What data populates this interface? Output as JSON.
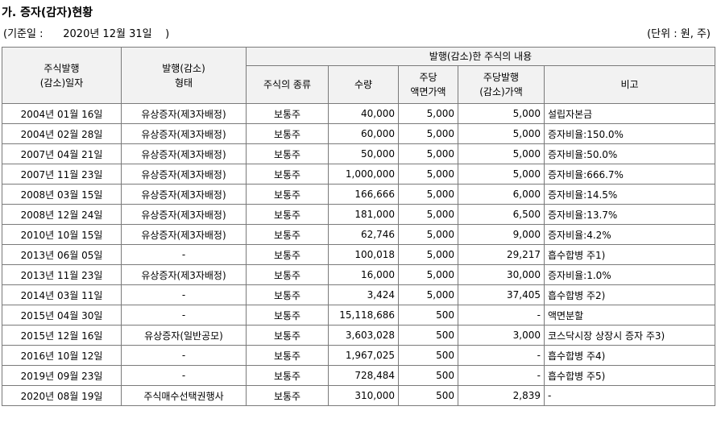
{
  "title": "가. 증자(감자)현황",
  "base_date": "(기준일 :      2020년 12월 31일    )",
  "unit": "(단위 : 원, 주)",
  "headers": {
    "issue_date_1": "주식발행",
    "issue_date_2": "(감소)일자",
    "issue_type_1": "발행(감소)",
    "issue_type_2": "형태",
    "contents": "발행(감소)한 주식의 내용",
    "kind": "주식의 종류",
    "quantity": "수량",
    "par_1": "주당",
    "par_2": "액면가액",
    "price_1": "주당발행",
    "price_2": "(감소)가액",
    "note": "비고"
  },
  "rows": [
    {
      "date": "2004년 01월 16일",
      "type": "유상증자(제3자배정)",
      "kind": "보통주",
      "qty": "40,000",
      "par": "5,000",
      "price": "5,000",
      "note": "설립자본금"
    },
    {
      "date": "2004년 02월 28일",
      "type": "유상증자(제3자배정)",
      "kind": "보통주",
      "qty": "60,000",
      "par": "5,000",
      "price": "5,000",
      "note": "증자비율:150.0%"
    },
    {
      "date": "2007년 04월 21일",
      "type": "유상증자(제3자배정)",
      "kind": "보통주",
      "qty": "50,000",
      "par": "5,000",
      "price": "5,000",
      "note": "증자비율:50.0%"
    },
    {
      "date": "2007년 11월 23일",
      "type": "유상증자(제3자배정)",
      "kind": "보통주",
      "qty": "1,000,000",
      "par": "5,000",
      "price": "5,000",
      "note": "증자비율:666.7%"
    },
    {
      "date": "2008년 03월 15일",
      "type": "유상증자(제3자배정)",
      "kind": "보통주",
      "qty": "166,666",
      "par": "5,000",
      "price": "6,000",
      "note": "증자비율:14.5%"
    },
    {
      "date": "2008년 12월 24일",
      "type": "유상증자(제3자배정)",
      "kind": "보통주",
      "qty": "181,000",
      "par": "5,000",
      "price": "6,500",
      "note": "증자비율:13.7%"
    },
    {
      "date": "2010년 10월 15일",
      "type": "유상증자(제3자배정)",
      "kind": "보통주",
      "qty": "62,746",
      "par": "5,000",
      "price": "9,000",
      "note": "증자비율:4.2%"
    },
    {
      "date": "2013년 06월 05일",
      "type": "-",
      "kind": "보통주",
      "qty": "100,018",
      "par": "5,000",
      "price": "29,217",
      "note": "흡수합병 주1)"
    },
    {
      "date": "2013년 11월 23일",
      "type": "유상증자(제3자배정)",
      "kind": "보통주",
      "qty": "16,000",
      "par": "5,000",
      "price": "30,000",
      "note": "증자비율:1.0%"
    },
    {
      "date": "2014년 03월 11일",
      "type": "-",
      "kind": "보통주",
      "qty": "3,424",
      "par": "5,000",
      "price": "37,405",
      "note": "흡수합병 주2)"
    },
    {
      "date": "2015년 04월 30일",
      "type": "-",
      "kind": "보통주",
      "qty": "15,118,686",
      "par": "500",
      "price": "-",
      "note": "액면분할"
    },
    {
      "date": "2015년 12월 16일",
      "type": "유상증자(일반공모)",
      "kind": "보통주",
      "qty": "3,603,028",
      "par": "500",
      "price": "3,000",
      "note": "코스닥시장 상장시 증자 주3)"
    },
    {
      "date": "2016년 10월 12일",
      "type": "-",
      "kind": "보통주",
      "qty": "1,967,025",
      "par": "500",
      "price": "-",
      "note": "흡수합병 주4)"
    },
    {
      "date": "2019년 09월 23일",
      "type": "-",
      "kind": "보통주",
      "qty": "728,484",
      "par": "500",
      "price": "-",
      "note": "흡수합병 주5)"
    },
    {
      "date": "2020년 08월 19일",
      "type": "주식매수선택권행사",
      "kind": "보통주",
      "qty": "310,000",
      "par": "500",
      "price": "2,839",
      "note": "-"
    }
  ]
}
